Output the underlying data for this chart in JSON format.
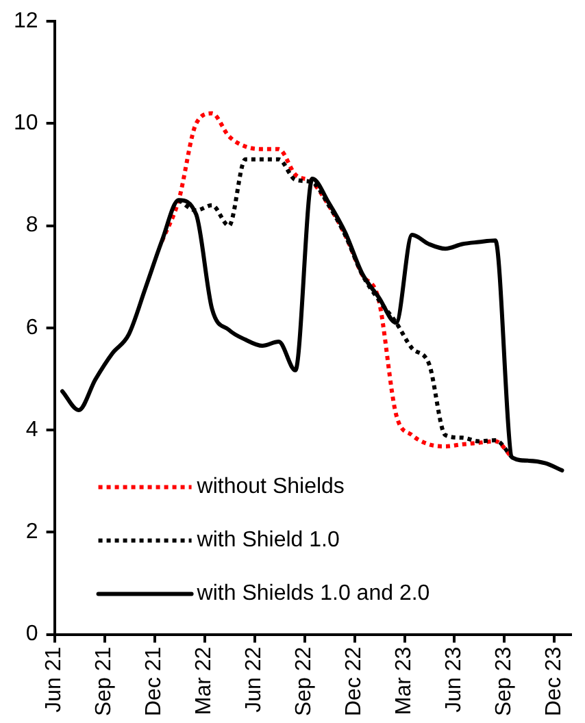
{
  "chart_data": {
    "type": "line",
    "xlim": [
      "2021-06-01",
      "2023-12-31"
    ],
    "xticks": [
      {
        "value": "2021-06-01",
        "label": "Jun 21"
      },
      {
        "value": "2021-09-01",
        "label": "Sep 21"
      },
      {
        "value": "2021-12-01",
        "label": "Dec 21"
      },
      {
        "value": "2022-03-01",
        "label": "Mar 22"
      },
      {
        "value": "2022-06-01",
        "label": "Jun 22"
      },
      {
        "value": "2022-09-01",
        "label": "Sep 22"
      },
      {
        "value": "2022-12-01",
        "label": "Dec 22"
      },
      {
        "value": "2023-03-01",
        "label": "Mar 23"
      },
      {
        "value": "2023-06-01",
        "label": "Jun 23"
      },
      {
        "value": "2023-09-01",
        "label": "Sep 23"
      },
      {
        "value": "2023-12-01",
        "label": "Dec 23"
      }
    ],
    "ylim": [
      0,
      12
    ],
    "yticks": [
      0,
      2,
      4,
      6,
      8,
      10,
      12
    ],
    "grid": false,
    "legend": "bottom left",
    "marker": "none",
    "series": [
      {
        "name": "without Shields",
        "color": "#ff0000",
        "line_style": "dotted",
        "x": [
          "2021-12-15",
          "2022-01-15",
          "2022-02-15",
          "2022-03-15",
          "2022-04-15",
          "2022-05-15",
          "2022-06-15",
          "2022-07-15",
          "2022-08-15",
          "2022-09-15",
          "2022-10-15",
          "2022-11-15",
          "2022-12-15",
          "2023-01-15",
          "2023-02-15",
          "2023-03-15",
          "2023-04-15",
          "2023-05-15",
          "2023-06-15",
          "2023-07-15",
          "2023-08-15",
          "2023-09-15"
        ],
        "values": [
          7.7,
          8.5,
          10.0,
          10.2,
          9.75,
          9.55,
          9.5,
          9.5,
          9.0,
          8.85,
          8.4,
          7.8,
          7.05,
          6.55,
          4.3,
          3.9,
          3.72,
          3.68,
          3.72,
          3.75,
          3.78,
          3.46
        ]
      },
      {
        "name": "with Shield 1.0",
        "color": "#000000",
        "line_style": "dotted",
        "x": [
          "2022-01-15",
          "2022-02-15",
          "2022-03-15",
          "2022-04-15",
          "2022-05-15",
          "2022-06-15",
          "2022-07-15",
          "2022-08-15",
          "2022-09-15",
          "2022-10-15",
          "2022-11-15",
          "2022-12-15",
          "2023-01-15",
          "2023-02-15",
          "2023-03-15",
          "2023-04-15",
          "2023-05-15",
          "2023-06-15",
          "2023-07-15",
          "2023-08-15",
          "2023-09-15"
        ],
        "values": [
          8.5,
          8.3,
          8.4,
          8.0,
          9.3,
          9.3,
          9.3,
          8.9,
          8.85,
          8.4,
          7.8,
          7.05,
          6.55,
          6.1,
          5.6,
          5.3,
          3.9,
          3.85,
          3.78,
          3.8,
          3.46
        ]
      },
      {
        "name": "with Shields 1.0 and 2.0",
        "color": "#000000",
        "line_style": "solid",
        "x": [
          "2021-06-15",
          "2021-07-15",
          "2021-08-15",
          "2021-09-15",
          "2021-10-15",
          "2021-11-15",
          "2021-12-15",
          "2022-01-15",
          "2022-02-15",
          "2022-03-15",
          "2022-04-15",
          "2022-05-15",
          "2022-06-15",
          "2022-07-15",
          "2022-08-15",
          "2022-09-15",
          "2022-10-15",
          "2022-11-15",
          "2022-12-15",
          "2023-01-15",
          "2023-02-15",
          "2023-03-15",
          "2023-04-15",
          "2023-05-15",
          "2023-06-15",
          "2023-07-15",
          "2023-08-15",
          "2023-09-15",
          "2023-10-15",
          "2023-11-15",
          "2023-12-15"
        ],
        "values": [
          4.76,
          4.39,
          4.99,
          5.5,
          5.87,
          6.79,
          7.71,
          8.5,
          8.22,
          6.37,
          5.96,
          5.77,
          5.65,
          5.73,
          5.17,
          8.92,
          8.45,
          7.85,
          7.07,
          6.6,
          6.1,
          7.82,
          7.64,
          7.55,
          7.64,
          7.68,
          7.71,
          3.46,
          3.4,
          3.35,
          3.21
        ]
      }
    ]
  }
}
